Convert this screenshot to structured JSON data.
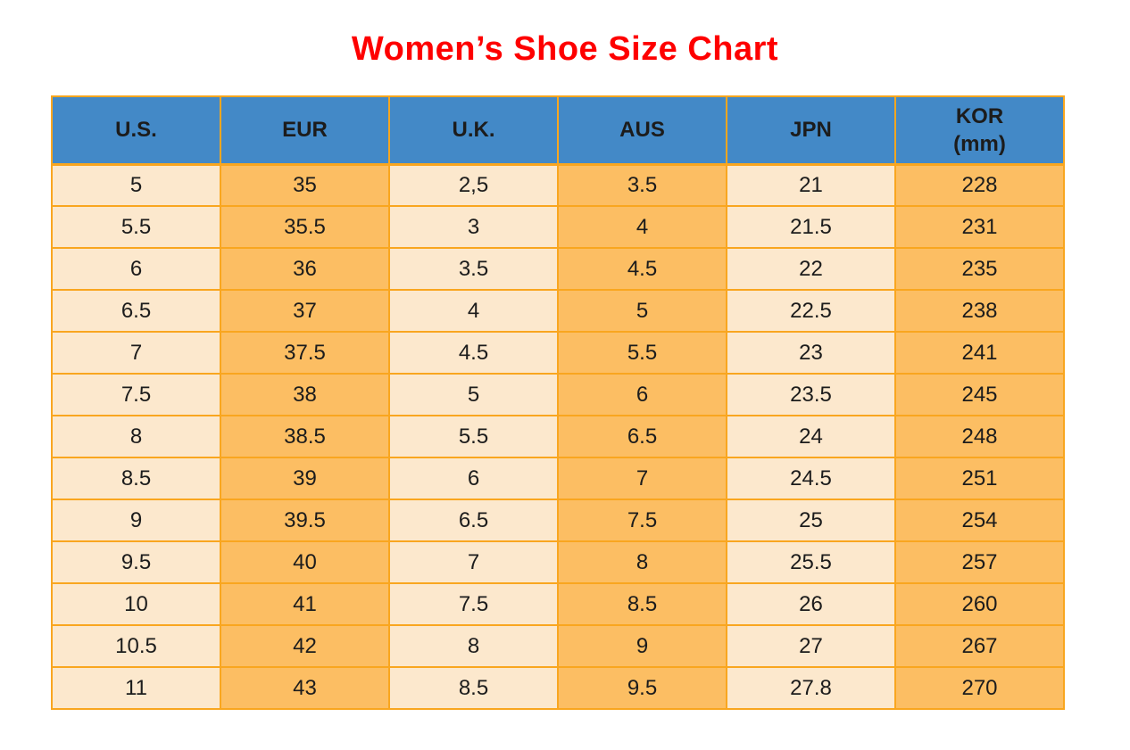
{
  "page": {
    "title": "Women’s Shoe Size Chart"
  },
  "colors": {
    "title-red": "#FE0000",
    "header-blue": "#4389C7",
    "column-cream": "#FCE8CD",
    "column-orange": "#FCBE63",
    "border-orange": "#F9A61F",
    "cell-text": "#1C1C1C",
    "background": "#FFFFFF"
  },
  "chart_data": {
    "type": "table",
    "title": "Women’s Shoe Size Chart",
    "columns": [
      "U.S.",
      "EUR",
      "U.K.",
      "AUS",
      "JPN",
      "KOR\n(mm)"
    ],
    "column_fill_pattern": [
      "cream",
      "orange",
      "cream",
      "orange",
      "cream",
      "orange"
    ],
    "rows": [
      [
        "5",
        "35",
        "2,5",
        "3.5",
        "21",
        "228"
      ],
      [
        "5.5",
        "35.5",
        "3",
        "4",
        "21.5",
        "231"
      ],
      [
        "6",
        "36",
        "3.5",
        "4.5",
        "22",
        "235"
      ],
      [
        "6.5",
        "37",
        "4",
        "5",
        "22.5",
        "238"
      ],
      [
        "7",
        "37.5",
        "4.5",
        "5.5",
        "23",
        "241"
      ],
      [
        "7.5",
        "38",
        "5",
        "6",
        "23.5",
        "245"
      ],
      [
        "8",
        "38.5",
        "5.5",
        "6.5",
        "24",
        "248"
      ],
      [
        "8.5",
        "39",
        "6",
        "7",
        "24.5",
        "251"
      ],
      [
        "9",
        "39.5",
        "6.5",
        "7.5",
        "25",
        "254"
      ],
      [
        "9.5",
        "40",
        "7",
        "8",
        "25.5",
        "257"
      ],
      [
        "10",
        "41",
        "7.5",
        "8.5",
        "26",
        "260"
      ],
      [
        "10.5",
        "42",
        "8",
        "9",
        "27",
        "267"
      ],
      [
        "11",
        "43",
        "8.5",
        "9.5",
        "27.8",
        "270"
      ]
    ]
  }
}
